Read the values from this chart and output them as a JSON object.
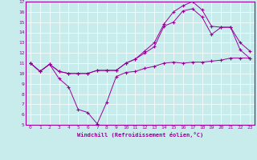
{
  "xlabel": "Windchill (Refroidissement éolien,°C)",
  "bg_color": "#c8ecec",
  "line_color": "#990099",
  "grid_color": "#ffffff",
  "xlim": [
    -0.5,
    23.5
  ],
  "ylim": [
    5,
    17
  ],
  "xticks": [
    0,
    1,
    2,
    3,
    4,
    5,
    6,
    7,
    8,
    9,
    10,
    11,
    12,
    13,
    14,
    15,
    16,
    17,
    18,
    19,
    20,
    21,
    22,
    23
  ],
  "yticks": [
    5,
    6,
    7,
    8,
    9,
    10,
    11,
    12,
    13,
    14,
    15,
    16,
    17
  ],
  "series": [
    {
      "x": [
        0,
        1,
        2,
        3,
        4,
        5,
        6,
        7,
        8,
        9,
        10,
        11,
        12,
        13,
        14,
        15,
        16,
        17,
        18,
        19,
        20,
        21,
        22,
        23
      ],
      "y": [
        11,
        10.2,
        10.9,
        9.5,
        8.7,
        6.5,
        6.2,
        5.1,
        7.2,
        9.7,
        10.1,
        10.2,
        10.5,
        10.7,
        11.0,
        11.1,
        11.0,
        11.1,
        11.1,
        11.2,
        11.3,
        11.5,
        11.5,
        11.5
      ]
    },
    {
      "x": [
        0,
        1,
        2,
        3,
        4,
        5,
        6,
        7,
        8,
        9,
        10,
        11,
        12,
        13,
        14,
        15,
        16,
        17,
        18,
        19,
        20,
        21,
        22,
        23
      ],
      "y": [
        11,
        10.2,
        10.9,
        10.2,
        10.0,
        10.0,
        10.0,
        10.3,
        10.3,
        10.3,
        11.0,
        11.4,
        12.0,
        12.6,
        14.6,
        15.0,
        16.1,
        16.3,
        15.5,
        13.8,
        14.5,
        14.5,
        13.0,
        12.2
      ]
    },
    {
      "x": [
        0,
        1,
        2,
        3,
        4,
        5,
        6,
        7,
        8,
        9,
        10,
        11,
        12,
        13,
        14,
        15,
        16,
        17,
        18,
        19,
        20,
        21,
        22,
        23
      ],
      "y": [
        11,
        10.2,
        10.9,
        10.2,
        10.0,
        10.0,
        10.0,
        10.3,
        10.3,
        10.3,
        11.0,
        11.4,
        12.2,
        13.0,
        14.8,
        16.0,
        16.6,
        17.0,
        16.2,
        14.6,
        14.5,
        14.5,
        12.3,
        11.5
      ]
    }
  ]
}
